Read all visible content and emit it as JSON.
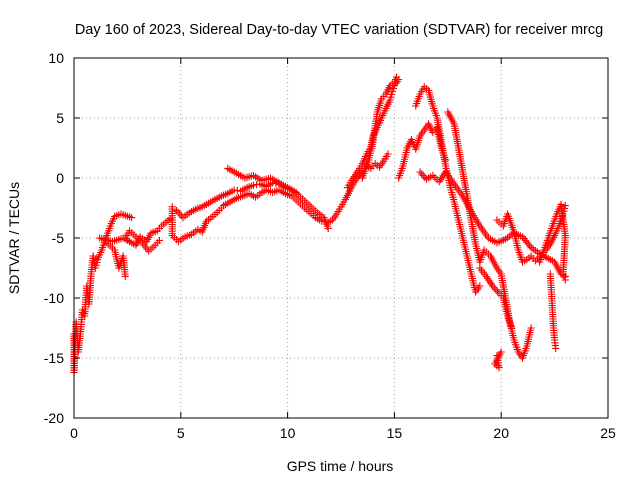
{
  "chart_data": {
    "type": "scatter",
    "title": "Day 160 of 2023, Sidereal Day-to-day VTEC variation (SDTVAR) for receiver mrcg",
    "xlabel": "GPS time / hours",
    "ylabel": "SDTVAR / TECUs",
    "xlim": [
      0,
      25
    ],
    "ylim": [
      -20,
      10
    ],
    "x_ticks": [
      0,
      5,
      10,
      15,
      20,
      25
    ],
    "y_ticks": [
      -20,
      -15,
      -10,
      -5,
      0,
      5,
      10
    ],
    "x_tick_labels": [
      "0",
      "5",
      "10",
      "15",
      "20",
      "25"
    ],
    "y_tick_labels": [
      "-20",
      "-15",
      "-10",
      "-5",
      "0",
      "5",
      "10"
    ],
    "grid": true,
    "legend": "none",
    "marker": "plus",
    "color": "#ff0000",
    "series": [
      {
        "values": [
          [
            0.0,
            -13.0
          ],
          [
            0.0,
            -16.2
          ],
          [
            0.1,
            -12.0
          ],
          [
            0.2,
            -14.5
          ],
          [
            0.3,
            -13.0
          ],
          [
            0.4,
            -11.0
          ],
          [
            0.5,
            -11.5
          ],
          [
            0.6,
            -9.0
          ],
          [
            0.7,
            -10.5
          ],
          [
            0.8,
            -8.0
          ],
          [
            0.9,
            -6.5
          ],
          [
            1.0,
            -7.5
          ],
          [
            1.1,
            -6.8
          ],
          [
            1.3,
            -6.0
          ],
          [
            1.5,
            -5.0
          ],
          [
            1.7,
            -4.0
          ],
          [
            1.9,
            -3.2
          ],
          [
            2.2,
            -3.0
          ],
          [
            2.7,
            -3.3
          ]
        ]
      },
      {
        "values": [
          [
            1.6,
            -5.5
          ],
          [
            1.9,
            -6.0
          ],
          [
            2.1,
            -7.5
          ],
          [
            2.3,
            -6.5
          ],
          [
            2.4,
            -8.2
          ]
        ]
      },
      {
        "values": [
          [
            1.2,
            -5.0
          ],
          [
            1.8,
            -5.3
          ],
          [
            2.3,
            -5.0
          ],
          [
            2.6,
            -5.3
          ],
          [
            2.9,
            -5.6
          ],
          [
            3.1,
            -4.9
          ],
          [
            3.4,
            -5.3
          ],
          [
            3.6,
            -4.6
          ],
          [
            3.9,
            -4.4
          ],
          [
            4.1,
            -4.0
          ],
          [
            4.3,
            -3.7
          ],
          [
            4.5,
            -3.4
          ]
        ]
      },
      {
        "values": [
          [
            2.4,
            -5.0
          ],
          [
            2.6,
            -4.4
          ],
          [
            2.9,
            -4.9
          ],
          [
            3.2,
            -5.4
          ],
          [
            3.5,
            -6.1
          ],
          [
            3.8,
            -5.6
          ],
          [
            4.0,
            -5.2
          ]
        ]
      },
      {
        "values": [
          [
            4.6,
            -2.4
          ],
          [
            4.6,
            -4.8
          ],
          [
            4.9,
            -5.3
          ],
          [
            5.2,
            -4.9
          ],
          [
            5.5,
            -4.7
          ],
          [
            5.8,
            -4.3
          ],
          [
            6.0,
            -4.5
          ],
          [
            6.2,
            -3.6
          ],
          [
            6.5,
            -3.2
          ],
          [
            6.8,
            -2.7
          ],
          [
            7.0,
            -2.3
          ],
          [
            7.3,
            -2.0
          ],
          [
            7.6,
            -1.7
          ],
          [
            7.9,
            -1.5
          ],
          [
            8.2,
            -1.3
          ],
          [
            8.5,
            -1.6
          ],
          [
            8.8,
            -1.2
          ],
          [
            9.0,
            -1.0
          ],
          [
            9.3,
            -1.2
          ],
          [
            9.6,
            -1.0
          ],
          [
            9.9,
            -1.3
          ],
          [
            10.2,
            -1.5
          ],
          [
            10.5,
            -2.0
          ],
          [
            10.8,
            -2.5
          ],
          [
            11.0,
            -2.8
          ],
          [
            11.3,
            -3.3
          ],
          [
            11.6,
            -3.6
          ],
          [
            11.9,
            -3.7
          ],
          [
            12.1,
            -3.5
          ],
          [
            12.3,
            -3.0
          ],
          [
            12.5,
            -2.4
          ],
          [
            12.7,
            -1.8
          ],
          [
            12.9,
            -1.1
          ],
          [
            13.1,
            -0.4
          ],
          [
            13.3,
            0.1
          ],
          [
            13.5,
            0.6
          ],
          [
            13.7,
            1.0
          ],
          [
            13.9,
            0.8
          ],
          [
            14.1,
            1.2
          ],
          [
            14.3,
            0.9
          ],
          [
            14.5,
            1.4
          ],
          [
            14.7,
            2.0
          ]
        ]
      },
      {
        "values": [
          [
            4.8,
            -2.7
          ],
          [
            5.1,
            -3.3
          ],
          [
            5.4,
            -2.9
          ],
          [
            5.7,
            -2.6
          ],
          [
            6.0,
            -2.4
          ],
          [
            6.3,
            -2.1
          ],
          [
            6.6,
            -1.8
          ],
          [
            6.9,
            -1.5
          ],
          [
            7.2,
            -1.3
          ],
          [
            7.5,
            -1.0
          ],
          [
            7.8,
            -1.1
          ],
          [
            8.1,
            -0.8
          ],
          [
            8.4,
            -0.6
          ],
          [
            8.7,
            -0.5
          ],
          [
            9.0,
            -0.7
          ],
          [
            9.3,
            -0.4
          ],
          [
            9.6,
            -0.5
          ],
          [
            9.9,
            -0.8
          ],
          [
            10.2,
            -1.0
          ],
          [
            10.5,
            -1.4
          ],
          [
            10.8,
            -1.9
          ],
          [
            11.1,
            -2.4
          ],
          [
            11.4,
            -2.9
          ],
          [
            11.7,
            -3.3
          ],
          [
            11.9,
            -4.2
          ]
        ]
      },
      {
        "values": [
          [
            7.2,
            0.8
          ],
          [
            7.6,
            0.4
          ],
          [
            8.0,
            0.0
          ],
          [
            8.4,
            0.2
          ],
          [
            8.8,
            -0.2
          ],
          [
            9.2,
            0.0
          ],
          [
            9.6,
            -0.4
          ],
          [
            10.0,
            -0.8
          ],
          [
            10.4,
            -1.2
          ]
        ]
      },
      {
        "values": [
          [
            12.8,
            -0.8
          ],
          [
            13.0,
            -0.2
          ],
          [
            13.3,
            0.6
          ],
          [
            13.5,
            1.2
          ],
          [
            13.7,
            2.0
          ],
          [
            13.9,
            2.6
          ],
          [
            14.0,
            3.5
          ],
          [
            14.2,
            4.2
          ],
          [
            14.4,
            5.0
          ],
          [
            14.6,
            5.8
          ],
          [
            14.8,
            6.5
          ],
          [
            14.9,
            7.2
          ],
          [
            15.0,
            7.7
          ],
          [
            15.2,
            8.2
          ]
        ]
      },
      {
        "values": [
          [
            13.5,
            0.0
          ],
          [
            13.8,
            1.5
          ],
          [
            14.0,
            3.0
          ],
          [
            14.2,
            5.5
          ],
          [
            14.4,
            6.6
          ],
          [
            14.6,
            7.0
          ],
          [
            14.8,
            7.7
          ],
          [
            15.0,
            8.0
          ],
          [
            15.1,
            8.4
          ]
        ]
      },
      {
        "values": [
          [
            15.2,
            0.0
          ],
          [
            15.4,
            1.0
          ],
          [
            15.6,
            2.5
          ],
          [
            15.8,
            3.2
          ],
          [
            16.0,
            2.4
          ],
          [
            16.2,
            3.5
          ],
          [
            16.4,
            4.0
          ],
          [
            16.6,
            4.5
          ],
          [
            16.8,
            3.8
          ],
          [
            17.0,
            4.2
          ],
          [
            17.2,
            2.5
          ],
          [
            17.4,
            1.5
          ]
        ]
      },
      {
        "values": [
          [
            16.0,
            6.0
          ],
          [
            16.2,
            7.0
          ],
          [
            16.4,
            7.6
          ],
          [
            16.6,
            7.3
          ],
          [
            16.8,
            6.0
          ],
          [
            17.0,
            5.0
          ],
          [
            17.2,
            3.0
          ],
          [
            17.4,
            1.0
          ],
          [
            17.6,
            -0.6
          ],
          [
            17.8,
            -2.0
          ],
          [
            18.0,
            -3.5
          ],
          [
            18.2,
            -5.0
          ],
          [
            18.4,
            -6.5
          ],
          [
            18.6,
            -8.0
          ],
          [
            18.8,
            -9.5
          ],
          [
            19.0,
            -9.0
          ]
        ]
      },
      {
        "values": [
          [
            16.2,
            0.5
          ],
          [
            16.5,
            -0.1
          ],
          [
            16.8,
            0.2
          ],
          [
            17.1,
            -0.3
          ],
          [
            17.4,
            0.5
          ],
          [
            17.8,
            -0.5
          ],
          [
            18.2,
            -1.5
          ],
          [
            18.6,
            -2.8
          ],
          [
            19.0,
            -4.0
          ],
          [
            19.4,
            -5.0
          ],
          [
            19.8,
            -5.4
          ],
          [
            20.2,
            -5.1
          ],
          [
            20.6,
            -4.6
          ],
          [
            21.0,
            -4.9
          ],
          [
            21.4,
            -5.8
          ],
          [
            21.8,
            -6.3
          ],
          [
            22.2,
            -6.7
          ],
          [
            22.5,
            -7.0
          ],
          [
            22.8,
            -8.0
          ],
          [
            23.0,
            -8.2
          ]
        ]
      },
      {
        "values": [
          [
            17.5,
            5.5
          ],
          [
            17.8,
            4.5
          ],
          [
            18.0,
            2.5
          ],
          [
            18.2,
            0.5
          ],
          [
            18.4,
            -1.5
          ],
          [
            18.6,
            -3.5
          ],
          [
            18.8,
            -5.5
          ],
          [
            19.0,
            -7.0
          ],
          [
            19.2,
            -6.0
          ],
          [
            19.5,
            -6.5
          ],
          [
            19.8,
            -7.5
          ],
          [
            20.0,
            -8.0
          ],
          [
            20.2,
            -10.0
          ],
          [
            20.4,
            -12.0
          ],
          [
            20.6,
            -13.5
          ],
          [
            20.8,
            -14.5
          ],
          [
            21.0,
            -15.0
          ],
          [
            21.2,
            -14.0
          ],
          [
            21.4,
            -12.5
          ]
        ]
      },
      {
        "values": [
          [
            19.8,
            -3.5
          ],
          [
            20.1,
            -4.0
          ],
          [
            20.3,
            -3.0
          ],
          [
            20.6,
            -4.5
          ],
          [
            20.8,
            -6.0
          ],
          [
            21.0,
            -7.0
          ],
          [
            21.2,
            -6.8
          ],
          [
            21.4,
            -6.5
          ],
          [
            21.6,
            -6.9
          ],
          [
            21.9,
            -6.4
          ],
          [
            22.1,
            -6.0
          ],
          [
            22.3,
            -5.5
          ],
          [
            22.5,
            -4.8
          ],
          [
            22.7,
            -4.0
          ],
          [
            22.9,
            -3.0
          ],
          [
            23.0,
            -2.3
          ]
        ]
      },
      {
        "values": [
          [
            19.0,
            -7.5
          ],
          [
            19.3,
            -8.2
          ],
          [
            19.6,
            -9.0
          ],
          [
            19.9,
            -9.6
          ],
          [
            20.1,
            -10.0
          ],
          [
            20.3,
            -11.5
          ],
          [
            20.5,
            -12.5
          ]
        ]
      },
      {
        "values": [
          [
            19.8,
            -14.8
          ],
          [
            19.9,
            -15.8
          ],
          [
            19.7,
            -15.5
          ],
          [
            20.0,
            -14.5
          ]
        ]
      },
      {
        "values": [
          [
            22.3,
            -8.0
          ],
          [
            22.35,
            -9.5
          ],
          [
            22.4,
            -11.0
          ],
          [
            22.45,
            -12.5
          ],
          [
            22.5,
            -13.5
          ],
          [
            22.55,
            -14.2
          ]
        ]
      },
      {
        "values": [
          [
            21.8,
            -7.0
          ],
          [
            22.0,
            -6.0
          ],
          [
            22.2,
            -5.0
          ],
          [
            22.4,
            -4.0
          ],
          [
            22.6,
            -3.0
          ],
          [
            22.8,
            -2.2
          ],
          [
            23.0,
            -4.8
          ],
          [
            22.9,
            -8.0
          ],
          [
            23.0,
            -8.5
          ]
        ]
      }
    ]
  }
}
